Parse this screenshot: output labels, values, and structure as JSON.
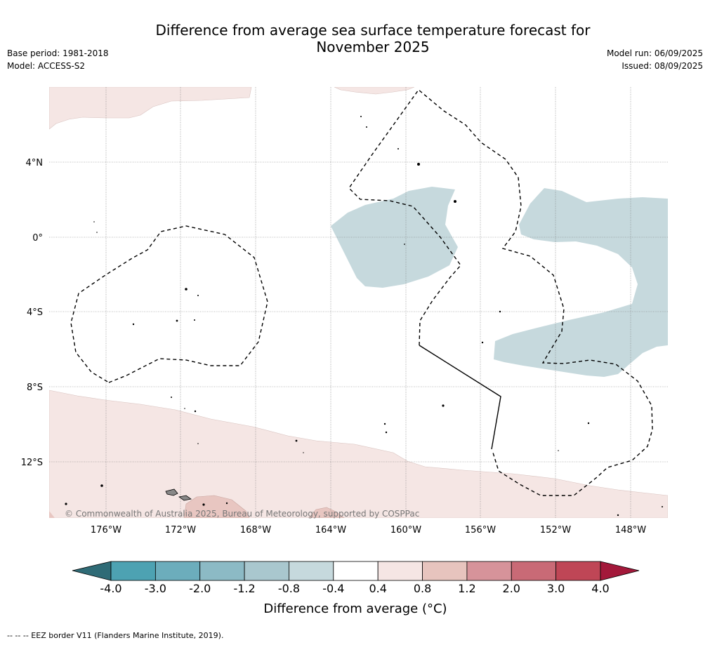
{
  "header": {
    "title_line1": "Difference from average sea surface temperature forecast for",
    "title_line2": "November 2025",
    "base_period": "Base period: 1981-2018",
    "model": "Model: ACCESS-S2",
    "model_run": "Model run: 06/09/2025",
    "issued": "Issued: 08/09/2025"
  },
  "map": {
    "lat_labels": [
      "4°N",
      "0°",
      "4°S",
      "8°S",
      "12°S"
    ],
    "lon_labels": [
      "176°W",
      "172°W",
      "168°W",
      "164°W",
      "160°W",
      "156°W",
      "152°W",
      "148°W"
    ],
    "copyright": "© Commonwealth of Australia 2025, Bureau of Meteorology, supported by COSPPac"
  },
  "colorbar": {
    "ticks": [
      "-4.0",
      "-3.0",
      "-2.0",
      "-1.2",
      "-0.8",
      "-0.4",
      "0.4",
      "0.8",
      "1.2",
      "2.0",
      "3.0",
      "4.0"
    ],
    "label": "Difference from average (°C)",
    "colors": {
      "below": "#2f6b76",
      "bins": [
        "#4da2b2",
        "#6cadbc",
        "#8cbac5",
        "#a9c7ce",
        "#c6d9dd",
        "#ffffff",
        "#f5e6e4",
        "#e7c4be",
        "#d6939a",
        "#c96a76",
        "#bf4656"
      ],
      "above": "#a3183a"
    }
  },
  "footer": {
    "note": "--  --  -- EEZ border V11 (Flanders Marine Institute, 2019)."
  }
}
